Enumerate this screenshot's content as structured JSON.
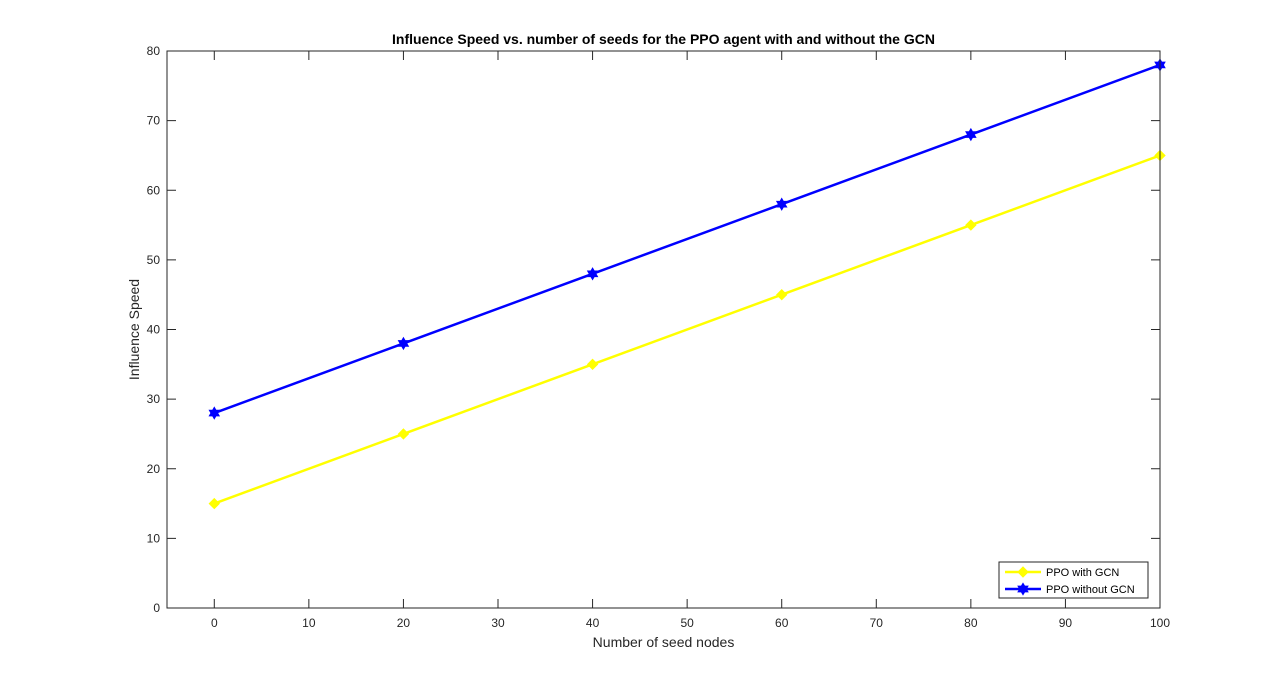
{
  "chart_data": {
    "type": "line",
    "title": "Influence Speed vs. number of seeds for the PPO agent with and without the GCN",
    "xlabel": "Number of seed nodes",
    "ylabel": "Influence Speed",
    "xlim": [
      -5,
      100
    ],
    "ylim": [
      0,
      80
    ],
    "xticks": [
      0,
      10,
      20,
      30,
      40,
      50,
      60,
      70,
      80,
      90,
      100
    ],
    "yticks": [
      0,
      10,
      20,
      30,
      40,
      50,
      60,
      70,
      80
    ],
    "grid": false,
    "legend_position": "bottom-right",
    "x": [
      0,
      20,
      40,
      60,
      80,
      100
    ],
    "series": [
      {
        "name": "PPO with GCN",
        "color": "#ffff00",
        "marker": "diamond",
        "values": [
          15,
          25,
          35,
          45,
          55,
          65
        ]
      },
      {
        "name": "PPO without GCN",
        "color": "#0000ff",
        "marker": "hexagram",
        "values": [
          28,
          38,
          48,
          58,
          68,
          78
        ]
      }
    ]
  }
}
